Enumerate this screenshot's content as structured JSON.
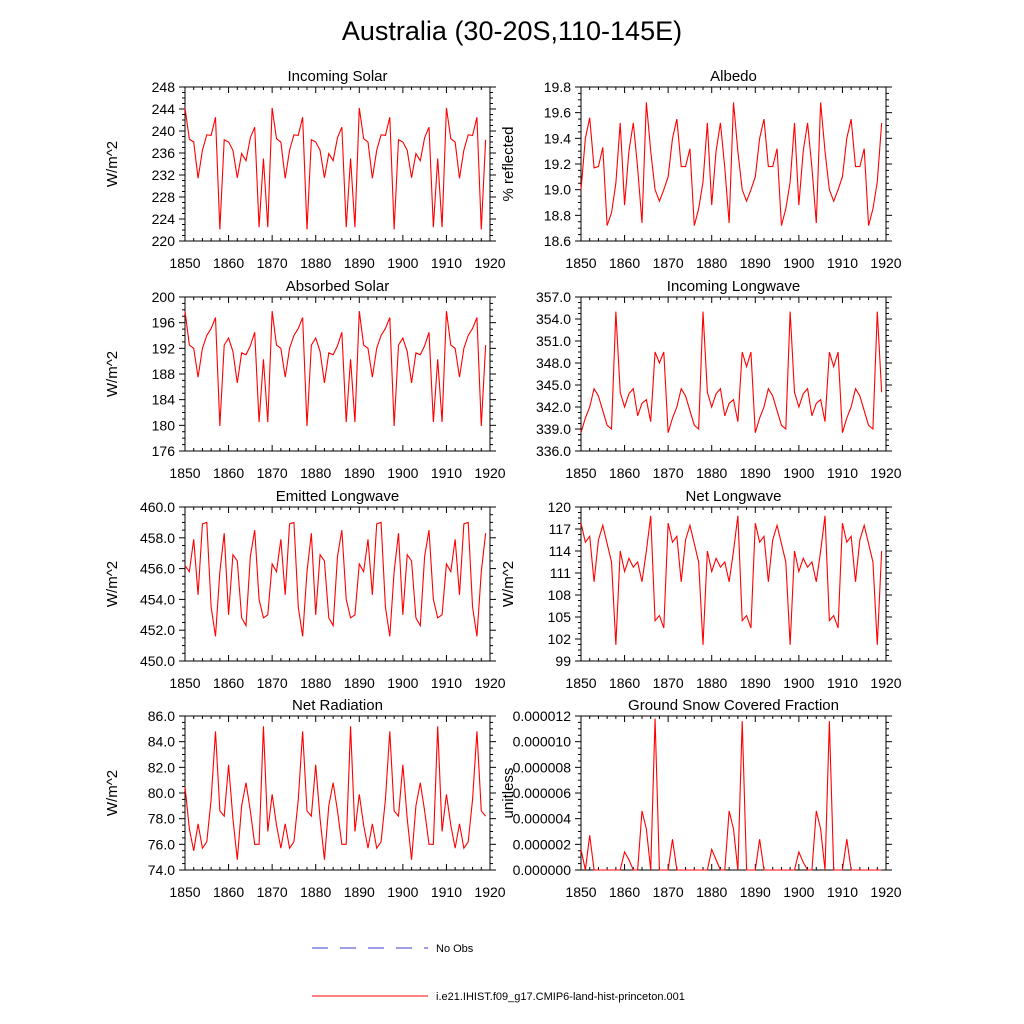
{
  "figure": {
    "title": "Australia (30-20S,110-145E)",
    "legend": [
      {
        "label": "No Obs",
        "color": "#3b3bd6",
        "dash": true
      },
      {
        "label": "i.e21.IHIST.f09_g17.CMIP6-land-hist-princeton.001",
        "color": "#ff0000",
        "dash": false
      }
    ]
  },
  "chart_data": [
    {
      "type": "line",
      "title": "Incoming Solar",
      "ylabel": "W/m^2",
      "xlim": [
        1850,
        1920
      ],
      "ylim": [
        220,
        248
      ],
      "xticks": [
        1850,
        1860,
        1870,
        1880,
        1890,
        1900,
        1910,
        1920
      ],
      "xtick_labels": [
        "1850",
        "1860",
        "1870",
        "1880",
        "1890",
        "1900",
        "1910",
        "1920"
      ],
      "yticks": [
        220,
        224,
        228,
        232,
        236,
        240,
        244,
        248
      ],
      "ytick_labels": [
        "220",
        "224",
        "228",
        "232",
        "236",
        "240",
        "244",
        "248"
      ],
      "x_start": 1850,
      "series": [
        {
          "color": "#ff0000",
          "values": [
            244.2,
            238.5,
            238,
            231.4,
            236.5,
            239.3,
            239.2,
            242.5,
            222.1,
            238.4,
            238,
            236.5,
            231.5,
            235.9,
            234.6,
            238.8,
            240.7,
            222.5,
            235,
            222.5,
            244.2,
            238.6,
            238,
            231.4,
            236.5,
            239.3,
            239.2,
            242.5,
            222.1,
            238.4,
            238,
            236.5,
            231.5,
            235.9,
            234.6,
            238.8,
            240.7,
            222.5,
            235,
            222.5,
            244.2,
            238.6,
            238,
            231.4,
            236.5,
            239.3,
            239.2,
            242.5,
            222.1,
            238.4,
            238,
            236.5,
            231.5,
            235.9,
            234.6,
            238.8,
            240.7,
            222.5,
            235,
            222.5,
            244.2,
            238.6,
            238,
            231.4,
            236.5,
            239.3,
            239.2,
            242.5,
            222.1,
            238.4
          ]
        }
      ]
    },
    {
      "type": "line",
      "title": "Albedo",
      "ylabel": "% reflected",
      "xlim": [
        1850,
        1920
      ],
      "ylim": [
        18.6,
        19.8
      ],
      "xticks": [
        1850,
        1860,
        1870,
        1880,
        1890,
        1900,
        1910,
        1920
      ],
      "xtick_labels": [
        "1850",
        "1860",
        "1870",
        "1880",
        "1890",
        "1900",
        "1910",
        "1920"
      ],
      "yticks": [
        18.6,
        18.8,
        19.0,
        19.2,
        19.4,
        19.6,
        19.8
      ],
      "ytick_labels": [
        "18.6",
        "18.8",
        "19.0",
        "19.2",
        "19.4",
        "19.6",
        "19.8"
      ],
      "x_start": 1850,
      "series": [
        {
          "color": "#ff0000",
          "values": [
            19.0,
            19.4,
            19.56,
            19.17,
            19.18,
            19.33,
            18.72,
            18.82,
            19.05,
            19.52,
            18.88,
            19.3,
            19.52,
            19.17,
            18.74,
            19.68,
            19.3,
            19.0,
            18.91,
            19.0,
            19.1,
            19.4,
            19.55,
            19.18,
            19.18,
            19.32,
            18.72,
            18.85,
            19.06,
            19.52,
            18.88,
            19.3,
            19.52,
            19.17,
            18.74,
            19.68,
            19.3,
            19.0,
            18.91,
            19.0,
            19.1,
            19.4,
            19.55,
            19.18,
            19.18,
            19.32,
            18.72,
            18.85,
            19.06,
            19.52,
            18.88,
            19.3,
            19.52,
            19.17,
            18.74,
            19.68,
            19.3,
            19.0,
            18.91,
            19.0,
            19.1,
            19.4,
            19.55,
            19.18,
            19.18,
            19.32,
            18.72,
            18.85,
            19.06,
            19.52
          ]
        }
      ]
    },
    {
      "type": "line",
      "title": "Absorbed Solar",
      "ylabel": "W/m^2",
      "xlim": [
        1850,
        1920
      ],
      "ylim": [
        176,
        200
      ],
      "xticks": [
        1850,
        1860,
        1870,
        1880,
        1890,
        1900,
        1910,
        1920
      ],
      "xtick_labels": [
        "1850",
        "1860",
        "1870",
        "1880",
        "1890",
        "1900",
        "1910",
        "1920"
      ],
      "yticks": [
        176,
        180,
        184,
        188,
        192,
        196,
        200
      ],
      "ytick_labels": [
        "176",
        "180",
        "184",
        "188",
        "192",
        "196",
        "200"
      ],
      "x_start": 1850,
      "series": [
        {
          "color": "#ff0000",
          "values": [
            197.8,
            192.5,
            192,
            187.5,
            192,
            194,
            195.1,
            196.8,
            179.9,
            192.5,
            193.6,
            191.5,
            186.6,
            191.3,
            191,
            192.4,
            194.5,
            180.5,
            190.3,
            180.5,
            197.8,
            192.5,
            192,
            187.5,
            192,
            194,
            195.1,
            196.8,
            179.9,
            192.5,
            193.6,
            191.5,
            186.6,
            191.3,
            191,
            192.4,
            194.5,
            180.5,
            190.3,
            180.5,
            197.8,
            192.5,
            192,
            187.5,
            192,
            194,
            195.1,
            196.8,
            179.9,
            192.5,
            193.6,
            191.5,
            186.6,
            191.3,
            191,
            192.4,
            194.5,
            180.5,
            190.3,
            180.5,
            197.8,
            192.5,
            192,
            187.5,
            192,
            194,
            195.1,
            196.8,
            179.9,
            192.5
          ]
        }
      ]
    },
    {
      "type": "line",
      "title": "Incoming Longwave",
      "ylabel": "",
      "xlim": [
        1850,
        1920
      ],
      "ylim": [
        336,
        357
      ],
      "xticks": [
        1850,
        1860,
        1870,
        1880,
        1890,
        1900,
        1910,
        1920
      ],
      "xtick_labels": [
        "1850",
        "1860",
        "1870",
        "1880",
        "1890",
        "1900",
        "1910",
        "1920"
      ],
      "yticks": [
        336,
        339,
        342,
        345,
        348,
        351,
        354,
        357
      ],
      "ytick_labels": [
        "336.0",
        "339.0",
        "342.0",
        "345.0",
        "348.0",
        "351.0",
        "354.0",
        "357.0"
      ],
      "x_start": 1850,
      "series": [
        {
          "color": "#ff0000",
          "values": [
            338.5,
            340.5,
            342,
            344.5,
            343.5,
            341.5,
            339.5,
            339,
            355,
            344,
            342,
            343.8,
            344.5,
            340.8,
            342.5,
            343,
            340,
            349.5,
            348,
            349.5,
            338.5,
            340.5,
            342,
            344.5,
            343.5,
            341.5,
            339.5,
            339,
            355,
            344,
            342,
            343.8,
            344.5,
            340.8,
            342.5,
            343,
            340,
            349.5,
            347.5,
            349.5,
            338.5,
            340.5,
            342,
            344.5,
            343.5,
            341.5,
            339.5,
            339,
            355,
            344,
            342,
            343.8,
            344.5,
            340.8,
            342.5,
            343,
            340,
            349.5,
            347.5,
            349.5,
            338.5,
            340.5,
            342,
            344.5,
            343.5,
            341.5,
            339.5,
            339,
            355,
            344
          ]
        }
      ]
    },
    {
      "type": "line",
      "title": "Emitted Longwave",
      "ylabel": "W/m^2",
      "xlim": [
        1850,
        1920
      ],
      "ylim": [
        450,
        460
      ],
      "xticks": [
        1850,
        1860,
        1870,
        1880,
        1890,
        1900,
        1910,
        1920
      ],
      "xtick_labels": [
        "1850",
        "1860",
        "1870",
        "1880",
        "1890",
        "1900",
        "1910",
        "1920"
      ],
      "yticks": [
        450,
        452,
        454,
        456,
        458,
        460
      ],
      "ytick_labels": [
        "450.0",
        "452.0",
        "454.0",
        "456.0",
        "458.0",
        "460.0"
      ],
      "x_start": 1850,
      "series": [
        {
          "color": "#ff0000",
          "values": [
            456.2,
            455.8,
            457.9,
            454.3,
            458.9,
            459,
            453.5,
            451.6,
            455.8,
            458.3,
            453,
            456.9,
            456.5,
            452.8,
            452.3,
            456.8,
            458.5,
            454,
            452.8,
            453,
            456.3,
            455.8,
            457.9,
            454.3,
            458.9,
            459,
            453.5,
            451.6,
            455.8,
            458.3,
            453,
            456.9,
            456.5,
            452.8,
            452.3,
            456.8,
            458.5,
            454,
            452.8,
            453,
            456.3,
            455.8,
            457.9,
            454.3,
            458.9,
            459,
            453.5,
            451.6,
            455.8,
            458.3,
            453,
            456.9,
            456.5,
            452.8,
            452.3,
            456.8,
            458.5,
            454,
            452.8,
            453,
            456.3,
            455.8,
            457.9,
            454.3,
            458.9,
            459,
            453.5,
            451.6,
            455.8,
            458.3
          ]
        }
      ]
    },
    {
      "type": "line",
      "title": "Net Longwave",
      "ylabel": "W/m^2",
      "xlim": [
        1850,
        1920
      ],
      "ylim": [
        99,
        120
      ],
      "xticks": [
        1850,
        1860,
        1870,
        1880,
        1890,
        1900,
        1910,
        1920
      ],
      "xtick_labels": [
        "1850",
        "1860",
        "1870",
        "1880",
        "1890",
        "1900",
        "1910",
        "1920"
      ],
      "yticks": [
        99,
        102,
        105,
        108,
        111,
        114,
        117,
        120
      ],
      "ytick_labels": [
        "99",
        "102",
        "105",
        "108",
        "111",
        "114",
        "117",
        "120"
      ],
      "x_start": 1850,
      "series": [
        {
          "color": "#ff0000",
          "values": [
            117.8,
            115.2,
            116,
            109.8,
            115.5,
            117.5,
            115,
            112.5,
            101.2,
            114,
            111.2,
            113,
            111.8,
            112.5,
            109.8,
            114,
            118.8,
            104.5,
            105.2,
            103.5,
            117.8,
            115.2,
            116,
            109.8,
            115.5,
            117.5,
            115,
            112.5,
            101.2,
            114,
            111.2,
            113,
            111.8,
            112.5,
            109.8,
            114,
            118.8,
            104.5,
            105.2,
            103.5,
            117.8,
            115.2,
            116,
            109.8,
            115.5,
            117.5,
            115,
            112.5,
            101.2,
            114,
            111.2,
            113,
            111.8,
            112.5,
            109.8,
            114,
            118.8,
            104.5,
            105.2,
            103.5,
            117.8,
            115.2,
            116,
            109.8,
            115.5,
            117.5,
            115,
            112.5,
            101.2,
            114
          ]
        }
      ]
    },
    {
      "type": "line",
      "title": "Net Radiation",
      "ylabel": "W/m^2",
      "xlim": [
        1850,
        1920
      ],
      "ylim": [
        74,
        86
      ],
      "xticks": [
        1850,
        1860,
        1870,
        1880,
        1890,
        1900,
        1910,
        1920
      ],
      "xtick_labels": [
        "1850",
        "1860",
        "1870",
        "1880",
        "1890",
        "1900",
        "1910",
        "1920"
      ],
      "yticks": [
        74,
        76,
        78,
        80,
        82,
        84,
        86
      ],
      "ytick_labels": [
        "74.0",
        "76.0",
        "78.0",
        "80.0",
        "82.0",
        "84.0",
        "86.0"
      ],
      "x_start": 1850,
      "series": [
        {
          "color": "#ff0000",
          "values": [
            80.5,
            77.2,
            75.5,
            77.6,
            75.7,
            76.2,
            79.5,
            84.8,
            78.6,
            78.2,
            82.2,
            78,
            74.8,
            79,
            80.8,
            78.6,
            76,
            76,
            85.2,
            77,
            79.9,
            77.5,
            75.7,
            77.6,
            75.7,
            76.2,
            79.5,
            84.8,
            78.6,
            78.2,
            82.2,
            78,
            74.8,
            79,
            80.8,
            78.6,
            76,
            76,
            85.2,
            77,
            79.9,
            77.5,
            75.7,
            77.6,
            75.7,
            76.2,
            79.5,
            84.8,
            78.6,
            78.2,
            82.2,
            78,
            74.8,
            79,
            80.8,
            78.6,
            76,
            76,
            85.2,
            77,
            79.9,
            77.5,
            75.7,
            77.6,
            75.7,
            76.2,
            79.5,
            84.8,
            78.6,
            78.2
          ]
        }
      ]
    },
    {
      "type": "line",
      "title": "Ground Snow Covered Fraction",
      "ylabel": "unitless",
      "xlim": [
        1850,
        1920
      ],
      "ylim": [
        0,
        1.2e-05
      ],
      "xticks": [
        1850,
        1860,
        1870,
        1880,
        1890,
        1900,
        1910,
        1920
      ],
      "xtick_labels": [
        "1850",
        "1860",
        "1870",
        "1880",
        "1890",
        "1900",
        "1910",
        "1920"
      ],
      "yticks": [
        0,
        2e-06,
        4e-06,
        6e-06,
        8e-06,
        1e-05,
        1.2e-05
      ],
      "ytick_labels": [
        "0.000000",
        "0.000002",
        "0.000004",
        "0.000006",
        "0.000008",
        "0.000010",
        "0.000012"
      ],
      "x_start": 1850,
      "series": [
        {
          "color": "#ff0000",
          "values": [
            1.6e-06,
            0,
            2.7e-06,
            0,
            0,
            0,
            0,
            0,
            0,
            0,
            1.4e-06,
            8e-07,
            0,
            0,
            4.6e-06,
            3.2e-06,
            0,
            1.18e-05,
            0,
            0,
            0,
            2.4e-06,
            0,
            0,
            0,
            0,
            0,
            0,
            0,
            0,
            1.6e-06,
            8e-07,
            0,
            0,
            4.6e-06,
            3.2e-06,
            0,
            1.16e-05,
            0,
            0,
            0,
            2.4e-06,
            0,
            0,
            0,
            0,
            0,
            0,
            0,
            0,
            1.4e-06,
            6e-07,
            0,
            0,
            4.6e-06,
            3.2e-06,
            0,
            1.16e-05,
            0,
            0,
            0,
            2.4e-06,
            0,
            0,
            0,
            0,
            0,
            0,
            0,
            0
          ]
        }
      ]
    }
  ]
}
